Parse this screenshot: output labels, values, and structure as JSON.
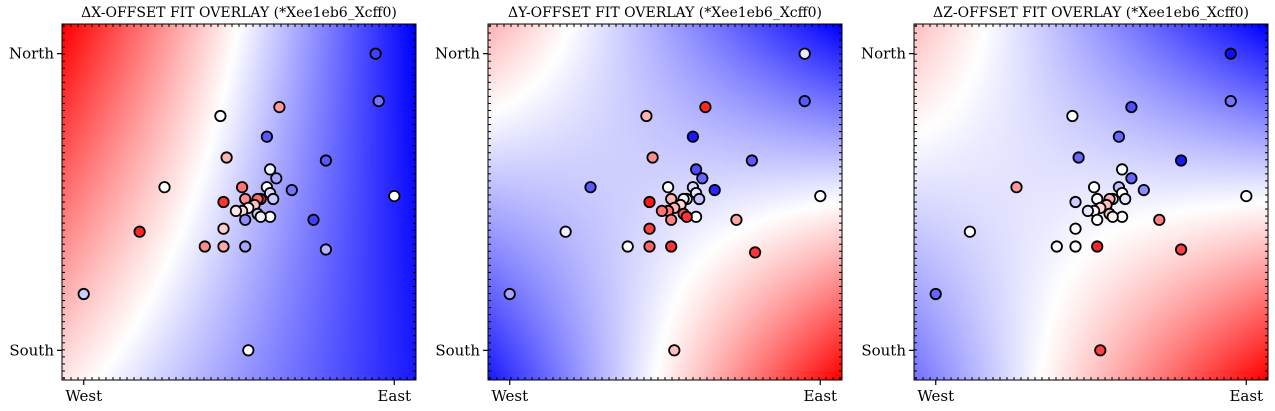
{
  "chart_data": [
    {
      "type": "scatter",
      "title": "ΔX-OFFSET FIT OVERLAY (*Xee1eb6_Xcff0)",
      "x_tick_labels": [
        "West",
        "East"
      ],
      "y_tick_labels": [
        "North",
        "South"
      ],
      "xlim": [
        -0.07,
        1.07
      ],
      "ylim": [
        -0.1,
        1.1
      ],
      "background": {
        "kind": "fitted-gradient",
        "colormap": "bwr",
        "low_color": "#0000ff",
        "mid_color": "#ffffff",
        "high_color": "#ff0000",
        "corner_values": {
          "north_west": 1.0,
          "north_east": -1.0,
          "south_west": 0.1,
          "south_east": -0.9
        }
      },
      "points": [
        {
          "x": 0.94,
          "y": 1.0,
          "v": -0.75
        },
        {
          "x": 0.95,
          "y": 0.84,
          "v": -0.55
        },
        {
          "x": 0.63,
          "y": 0.82,
          "v": 0.4
        },
        {
          "x": 0.44,
          "y": 0.79,
          "v": 0.0
        },
        {
          "x": 0.59,
          "y": 0.72,
          "v": -0.65
        },
        {
          "x": 0.46,
          "y": 0.65,
          "v": 0.3
        },
        {
          "x": 0.78,
          "y": 0.64,
          "v": -0.65
        },
        {
          "x": 0.6,
          "y": 0.61,
          "v": -0.05
        },
        {
          "x": 0.62,
          "y": 0.58,
          "v": -0.35
        },
        {
          "x": 0.26,
          "y": 0.55,
          "v": 0.0
        },
        {
          "x": 0.51,
          "y": 0.55,
          "v": 0.55
        },
        {
          "x": 0.59,
          "y": 0.55,
          "v": 0.0
        },
        {
          "x": 0.67,
          "y": 0.54,
          "v": -0.55
        },
        {
          "x": 0.6,
          "y": 0.53,
          "v": -0.15
        },
        {
          "x": 1.0,
          "y": 0.52,
          "v": 0.0
        },
        {
          "x": 0.52,
          "y": 0.51,
          "v": 0.45
        },
        {
          "x": 0.57,
          "y": 0.51,
          "v": 0.85
        },
        {
          "x": 0.56,
          "y": 0.51,
          "v": 0.6
        },
        {
          "x": 0.61,
          "y": 0.51,
          "v": -0.2
        },
        {
          "x": 0.45,
          "y": 0.5,
          "v": 0.8
        },
        {
          "x": 0.55,
          "y": 0.49,
          "v": 0.25
        },
        {
          "x": 0.53,
          "y": 0.48,
          "v": 0.05
        },
        {
          "x": 0.51,
          "y": 0.47,
          "v": 0.15
        },
        {
          "x": 0.49,
          "y": 0.47,
          "v": 0.1
        },
        {
          "x": 0.56,
          "y": 0.46,
          "v": -0.2
        },
        {
          "x": 0.6,
          "y": 0.45,
          "v": 0.0
        },
        {
          "x": 0.57,
          "y": 0.45,
          "v": -0.05
        },
        {
          "x": 0.52,
          "y": 0.44,
          "v": -0.45
        },
        {
          "x": 0.74,
          "y": 0.44,
          "v": -0.75
        },
        {
          "x": 0.18,
          "y": 0.4,
          "v": 0.85
        },
        {
          "x": 0.45,
          "y": 0.41,
          "v": 0.2
        },
        {
          "x": 0.45,
          "y": 0.35,
          "v": 0.35
        },
        {
          "x": 0.39,
          "y": 0.35,
          "v": 0.45
        },
        {
          "x": 0.52,
          "y": 0.35,
          "v": -0.35
        },
        {
          "x": 0.78,
          "y": 0.34,
          "v": -0.3
        },
        {
          "x": 0.0,
          "y": 0.19,
          "v": -0.2
        },
        {
          "x": 0.53,
          "y": 0.0,
          "v": 0.0
        }
      ]
    },
    {
      "type": "scatter",
      "title": "ΔY-OFFSET FIT OVERLAY (*Xee1eb6_Xcff0)",
      "x_tick_labels": [
        "West",
        "East"
      ],
      "y_tick_labels": [
        "North",
        "South"
      ],
      "xlim": [
        -0.07,
        1.07
      ],
      "ylim": [
        -0.1,
        1.1
      ],
      "background": {
        "kind": "fitted-gradient",
        "colormap": "bwr",
        "low_color": "#0000ff",
        "mid_color": "#ffffff",
        "high_color": "#ff0000",
        "corner_values": {
          "north_west": 0.3,
          "north_east": -1.0,
          "south_west": -0.9,
          "south_east": 1.0
        }
      },
      "points": [
        {
          "x": 0.95,
          "y": 1.0,
          "v": -0.1
        },
        {
          "x": 0.95,
          "y": 0.84,
          "v": -0.65
        },
        {
          "x": 0.63,
          "y": 0.82,
          "v": 0.85
        },
        {
          "x": 0.44,
          "y": 0.79,
          "v": 0.3
        },
        {
          "x": 0.59,
          "y": 0.72,
          "v": -0.9
        },
        {
          "x": 0.46,
          "y": 0.65,
          "v": 0.45
        },
        {
          "x": 0.78,
          "y": 0.64,
          "v": -0.65
        },
        {
          "x": 0.6,
          "y": 0.61,
          "v": -0.7
        },
        {
          "x": 0.62,
          "y": 0.58,
          "v": -0.6
        },
        {
          "x": 0.26,
          "y": 0.55,
          "v": -0.65
        },
        {
          "x": 0.51,
          "y": 0.55,
          "v": 0.0
        },
        {
          "x": 0.59,
          "y": 0.55,
          "v": -0.15
        },
        {
          "x": 0.66,
          "y": 0.54,
          "v": -0.85
        },
        {
          "x": 0.6,
          "y": 0.53,
          "v": -0.1
        },
        {
          "x": 1.0,
          "y": 0.52,
          "v": 0.0
        },
        {
          "x": 0.52,
          "y": 0.51,
          "v": 0.3
        },
        {
          "x": 0.57,
          "y": 0.51,
          "v": 0.0
        },
        {
          "x": 0.56,
          "y": 0.51,
          "v": -0.05
        },
        {
          "x": 0.61,
          "y": 0.51,
          "v": -0.25
        },
        {
          "x": 0.45,
          "y": 0.5,
          "v": 0.9
        },
        {
          "x": 0.55,
          "y": 0.49,
          "v": 0.15
        },
        {
          "x": 0.53,
          "y": 0.48,
          "v": 0.3
        },
        {
          "x": 0.51,
          "y": 0.47,
          "v": 0.55
        },
        {
          "x": 0.49,
          "y": 0.47,
          "v": 0.55
        },
        {
          "x": 0.56,
          "y": 0.46,
          "v": 0.7
        },
        {
          "x": 0.6,
          "y": 0.45,
          "v": 0.0
        },
        {
          "x": 0.57,
          "y": 0.45,
          "v": 0.8
        },
        {
          "x": 0.52,
          "y": 0.44,
          "v": 0.5
        },
        {
          "x": 0.73,
          "y": 0.44,
          "v": 0.35
        },
        {
          "x": 0.18,
          "y": 0.4,
          "v": -0.05
        },
        {
          "x": 0.45,
          "y": 0.41,
          "v": 0.75
        },
        {
          "x": 0.45,
          "y": 0.35,
          "v": 0.6
        },
        {
          "x": 0.38,
          "y": 0.35,
          "v": 0.0
        },
        {
          "x": 0.52,
          "y": 0.35,
          "v": 0.8
        },
        {
          "x": 0.79,
          "y": 0.33,
          "v": 0.8
        },
        {
          "x": 0.0,
          "y": 0.19,
          "v": -0.35
        },
        {
          "x": 0.53,
          "y": 0.0,
          "v": 0.25
        }
      ]
    },
    {
      "type": "scatter",
      "title": "ΔZ-OFFSET FIT OVERLAY (*Xee1eb6_Xcff0)",
      "x_tick_labels": [
        "West",
        "East"
      ],
      "y_tick_labels": [
        "North",
        "South"
      ],
      "xlim": [
        -0.07,
        1.07
      ],
      "ylim": [
        -0.1,
        1.1
      ],
      "background": {
        "kind": "fitted-gradient",
        "colormap": "bwr",
        "low_color": "#0000ff",
        "mid_color": "#ffffff",
        "high_color": "#ff0000",
        "corner_values": {
          "north_west": 0.25,
          "north_east": -1.0,
          "south_west": -0.55,
          "south_east": 1.0
        }
      },
      "points": [
        {
          "x": 0.95,
          "y": 1.0,
          "v": -0.95
        },
        {
          "x": 0.95,
          "y": 0.84,
          "v": -0.55
        },
        {
          "x": 0.63,
          "y": 0.82,
          "v": -0.7
        },
        {
          "x": 0.44,
          "y": 0.79,
          "v": 0.0
        },
        {
          "x": 0.59,
          "y": 0.72,
          "v": -0.6
        },
        {
          "x": 0.46,
          "y": 0.65,
          "v": -0.6
        },
        {
          "x": 0.79,
          "y": 0.64,
          "v": -0.9
        },
        {
          "x": 0.6,
          "y": 0.61,
          "v": 0.0
        },
        {
          "x": 0.63,
          "y": 0.58,
          "v": -0.6
        },
        {
          "x": 0.26,
          "y": 0.55,
          "v": 0.4
        },
        {
          "x": 0.51,
          "y": 0.55,
          "v": 0.0
        },
        {
          "x": 0.59,
          "y": 0.55,
          "v": -0.25
        },
        {
          "x": 0.67,
          "y": 0.54,
          "v": -0.45
        },
        {
          "x": 0.6,
          "y": 0.53,
          "v": 0.0
        },
        {
          "x": 1.0,
          "y": 0.52,
          "v": 0.0
        },
        {
          "x": 0.52,
          "y": 0.51,
          "v": 0.0
        },
        {
          "x": 0.57,
          "y": 0.51,
          "v": 0.0
        },
        {
          "x": 0.56,
          "y": 0.51,
          "v": 0.3
        },
        {
          "x": 0.61,
          "y": 0.51,
          "v": -0.1
        },
        {
          "x": 0.45,
          "y": 0.5,
          "v": -0.2
        },
        {
          "x": 0.55,
          "y": 0.49,
          "v": 0.25
        },
        {
          "x": 0.53,
          "y": 0.48,
          "v": 0.15
        },
        {
          "x": 0.51,
          "y": 0.47,
          "v": 0.05
        },
        {
          "x": 0.49,
          "y": 0.47,
          "v": -0.1
        },
        {
          "x": 0.56,
          "y": 0.46,
          "v": 0.25
        },
        {
          "x": 0.6,
          "y": 0.45,
          "v": 0.0
        },
        {
          "x": 0.57,
          "y": 0.45,
          "v": 0.05
        },
        {
          "x": 0.52,
          "y": 0.44,
          "v": 0.0
        },
        {
          "x": 0.72,
          "y": 0.44,
          "v": 0.5
        },
        {
          "x": 0.11,
          "y": 0.4,
          "v": 0.0
        },
        {
          "x": 0.45,
          "y": 0.41,
          "v": 0.0
        },
        {
          "x": 0.45,
          "y": 0.35,
          "v": 0.0
        },
        {
          "x": 0.39,
          "y": 0.35,
          "v": 0.0
        },
        {
          "x": 0.52,
          "y": 0.35,
          "v": 0.85
        },
        {
          "x": 0.79,
          "y": 0.34,
          "v": 0.75
        },
        {
          "x": 0.0,
          "y": 0.19,
          "v": -0.6
        },
        {
          "x": 0.53,
          "y": 0.0,
          "v": 0.75
        }
      ]
    }
  ]
}
